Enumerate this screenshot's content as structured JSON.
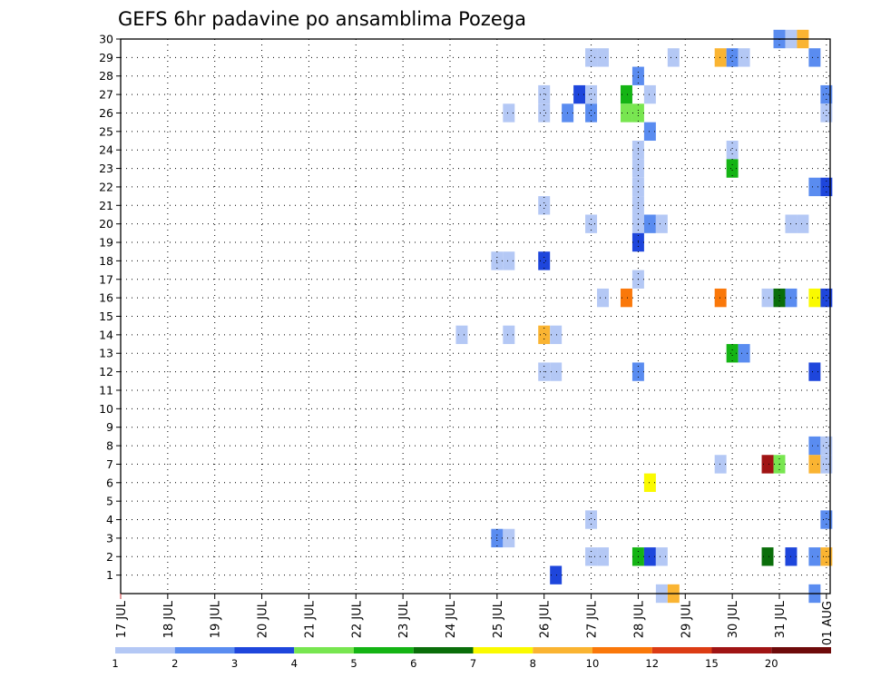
{
  "chart_data": {
    "type": "heatmap",
    "title": "GEFS 6hr padavine po ansamblima Pozega",
    "xlabel": "",
    "ylabel": "",
    "x_ticks": [
      "17 JUL",
      "18 JUL",
      "19 JUL",
      "20 JUL",
      "21 JUL",
      "22 JUL",
      "23 JUL",
      "24 JUL",
      "25 JUL",
      "26 JUL",
      "27 JUL",
      "28 JUL",
      "29 JUL",
      "30 JUL",
      "31 JUL",
      "01 AUG"
    ],
    "y_ticks": [
      "1",
      "2",
      "3",
      "4",
      "5",
      "6",
      "7",
      "8",
      "9",
      "10",
      "11",
      "12",
      "13",
      "14",
      "15",
      "16",
      "17",
      "18",
      "19",
      "20",
      "21",
      "22",
      "23",
      "24",
      "25",
      "26",
      "27",
      "28",
      "29",
      "30"
    ],
    "x_range_days": [
      0,
      15.08
    ],
    "y_range": [
      0,
      30
    ],
    "grid": true,
    "colorbar": {
      "labels": [
        "1",
        "2",
        "3",
        "4",
        "5",
        "6",
        "7",
        "8",
        "10",
        "12",
        "15",
        "20"
      ],
      "colors": [
        "#b4c8f5",
        "#5a8cf0",
        "#1e46dc",
        "#78e650",
        "#14b414",
        "#0a6e0a",
        "#fafa00",
        "#fab432",
        "#fa780a",
        "#dc3c14",
        "#a01414",
        "#6e0a0a"
      ]
    },
    "cells": [
      {
        "day": 10.0,
        "member": 29,
        "value": 1.5
      },
      {
        "day": 10.25,
        "member": 29,
        "value": 1.5
      },
      {
        "day": 11.75,
        "member": 29,
        "value": 1.5
      },
      {
        "day": 12.75,
        "member": 29,
        "value": 9
      },
      {
        "day": 13.0,
        "member": 29,
        "value": 2.5
      },
      {
        "day": 13.25,
        "member": 29,
        "value": 1.5
      },
      {
        "day": 14.75,
        "member": 29,
        "value": 2.5
      },
      {
        "day": 14.0,
        "member": 30,
        "value": 2.5
      },
      {
        "day": 14.25,
        "member": 30,
        "value": 1.5
      },
      {
        "day": 14.5,
        "member": 30,
        "value": 9
      },
      {
        "day": 11.0,
        "member": 28,
        "value": 2.5
      },
      {
        "day": 9.0,
        "member": 27,
        "value": 1.5
      },
      {
        "day": 9.75,
        "member": 27,
        "value": 3.5
      },
      {
        "day": 10.0,
        "member": 27,
        "value": 1.5
      },
      {
        "day": 10.75,
        "member": 27,
        "value": 5.5
      },
      {
        "day": 11.25,
        "member": 27,
        "value": 1.5
      },
      {
        "day": 15.0,
        "member": 27,
        "value": 2.5
      },
      {
        "day": 8.25,
        "member": 26,
        "value": 1.5
      },
      {
        "day": 9.0,
        "member": 26,
        "value": 1.5
      },
      {
        "day": 9.5,
        "member": 26,
        "value": 2.5
      },
      {
        "day": 10.0,
        "member": 26,
        "value": 2.5
      },
      {
        "day": 10.75,
        "member": 26,
        "value": 4.5
      },
      {
        "day": 11.0,
        "member": 26,
        "value": 4.5
      },
      {
        "day": 15.0,
        "member": 26,
        "value": 1.5
      },
      {
        "day": 11.25,
        "member": 25,
        "value": 2.5
      },
      {
        "day": 11.0,
        "member": 24,
        "value": 1.5
      },
      {
        "day": 13.0,
        "member": 24,
        "value": 1.5
      },
      {
        "day": 11.0,
        "member": 23,
        "value": 1.5
      },
      {
        "day": 13.0,
        "member": 23,
        "value": 5.5
      },
      {
        "day": 11.0,
        "member": 22,
        "value": 1.5
      },
      {
        "day": 14.75,
        "member": 22,
        "value": 2.5
      },
      {
        "day": 15.0,
        "member": 22,
        "value": 3.5
      },
      {
        "day": 9.0,
        "member": 21,
        "value": 1.5
      },
      {
        "day": 11.0,
        "member": 21,
        "value": 1.5
      },
      {
        "day": 10.0,
        "member": 20,
        "value": 1.5
      },
      {
        "day": 11.0,
        "member": 20,
        "value": 1.5
      },
      {
        "day": 11.25,
        "member": 20,
        "value": 2.5
      },
      {
        "day": 11.5,
        "member": 20,
        "value": 1.5
      },
      {
        "day": 14.25,
        "member": 20,
        "value": 1.5
      },
      {
        "day": 14.5,
        "member": 20,
        "value": 1.5
      },
      {
        "day": 11.0,
        "member": 19,
        "value": 3.5
      },
      {
        "day": 8.0,
        "member": 18,
        "value": 1.5
      },
      {
        "day": 8.25,
        "member": 18,
        "value": 1.5
      },
      {
        "day": 9.0,
        "member": 18,
        "value": 3.5
      },
      {
        "day": 11.0,
        "member": 17,
        "value": 1.5
      },
      {
        "day": 10.25,
        "member": 16,
        "value": 1.5
      },
      {
        "day": 10.75,
        "member": 16,
        "value": 11
      },
      {
        "day": 12.75,
        "member": 16,
        "value": 11
      },
      {
        "day": 13.75,
        "member": 16,
        "value": 1.5
      },
      {
        "day": 14.0,
        "member": 16,
        "value": 6.5
      },
      {
        "day": 14.25,
        "member": 16,
        "value": 2.5
      },
      {
        "day": 14.75,
        "member": 16,
        "value": 7.5
      },
      {
        "day": 15.0,
        "member": 16,
        "value": 3.5
      },
      {
        "day": 7.25,
        "member": 14,
        "value": 1.5
      },
      {
        "day": 8.25,
        "member": 14,
        "value": 1.5
      },
      {
        "day": 9.0,
        "member": 14,
        "value": 9
      },
      {
        "day": 9.25,
        "member": 14,
        "value": 1.5
      },
      {
        "day": 13.0,
        "member": 13,
        "value": 5.5
      },
      {
        "day": 13.25,
        "member": 13,
        "value": 2.5
      },
      {
        "day": 9.0,
        "member": 12,
        "value": 1.5
      },
      {
        "day": 9.25,
        "member": 12,
        "value": 1.5
      },
      {
        "day": 11.0,
        "member": 12,
        "value": 2.5
      },
      {
        "day": 14.75,
        "member": 12,
        "value": 3.5
      },
      {
        "day": 14.75,
        "member": 8,
        "value": 2.5
      },
      {
        "day": 15.0,
        "member": 8,
        "value": 1.5
      },
      {
        "day": 12.75,
        "member": 7,
        "value": 1.5
      },
      {
        "day": 13.75,
        "member": 7,
        "value": 17
      },
      {
        "day": 14.0,
        "member": 7,
        "value": 4.5
      },
      {
        "day": 14.75,
        "member": 7,
        "value": 9
      },
      {
        "day": 15.0,
        "member": 7,
        "value": 1.5
      },
      {
        "day": 11.25,
        "member": 6,
        "value": 7.5
      },
      {
        "day": 10.0,
        "member": 4,
        "value": 1.5
      },
      {
        "day": 15.0,
        "member": 4,
        "value": 2.5
      },
      {
        "day": 8.0,
        "member": 3,
        "value": 2.5
      },
      {
        "day": 8.25,
        "member": 3,
        "value": 1.5
      },
      {
        "day": 10.0,
        "member": 2,
        "value": 1.5
      },
      {
        "day": 10.25,
        "member": 2,
        "value": 1.5
      },
      {
        "day": 11.0,
        "member": 2,
        "value": 5.5
      },
      {
        "day": 11.25,
        "member": 2,
        "value": 3.5
      },
      {
        "day": 11.5,
        "member": 2,
        "value": 1.5
      },
      {
        "day": 13.75,
        "member": 2,
        "value": 6.5
      },
      {
        "day": 14.25,
        "member": 2,
        "value": 3.5
      },
      {
        "day": 14.75,
        "member": 2,
        "value": 2.5
      },
      {
        "day": 15.0,
        "member": 2,
        "value": 9
      },
      {
        "day": 9.25,
        "member": 1,
        "value": 3.5
      },
      {
        "day": 11.5,
        "member": 0,
        "value": 1.5
      },
      {
        "day": 11.75,
        "member": 0,
        "value": 9
      },
      {
        "day": 14.75,
        "member": 0,
        "value": 2.5
      }
    ]
  }
}
